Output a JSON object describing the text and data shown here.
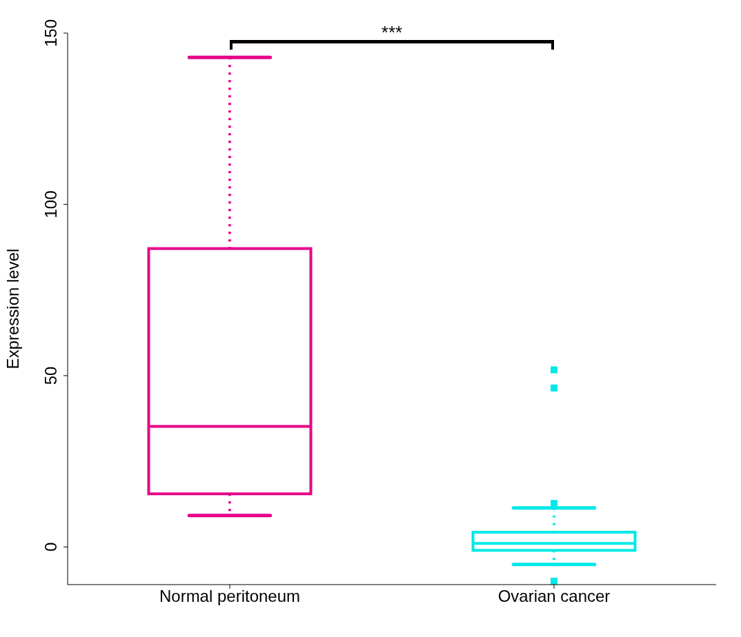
{
  "chart_data": {
    "type": "box",
    "ylabel": "Expression level",
    "categories": [
      "Normal peritoneum",
      "Ovarian cancer"
    ],
    "colors": [
      "#e8008a",
      "#00e8e8"
    ],
    "boxes": [
      {
        "low": 9.2,
        "q1": 15.5,
        "median": 35.2,
        "q3": 87.1,
        "high": 142.9
      },
      {
        "low": -5.1,
        "q1": -1.0,
        "median": 1.0,
        "q3": 4.3,
        "high": 11.4,
        "outliers": [
          51.7,
          46.4,
          12.7,
          -10
        ]
      }
    ],
    "ylim": [
      -11,
      150
    ],
    "yticks": [
      0,
      50,
      100,
      150
    ],
    "grid": false,
    "legend": false,
    "annotations": [
      "***"
    ]
  }
}
